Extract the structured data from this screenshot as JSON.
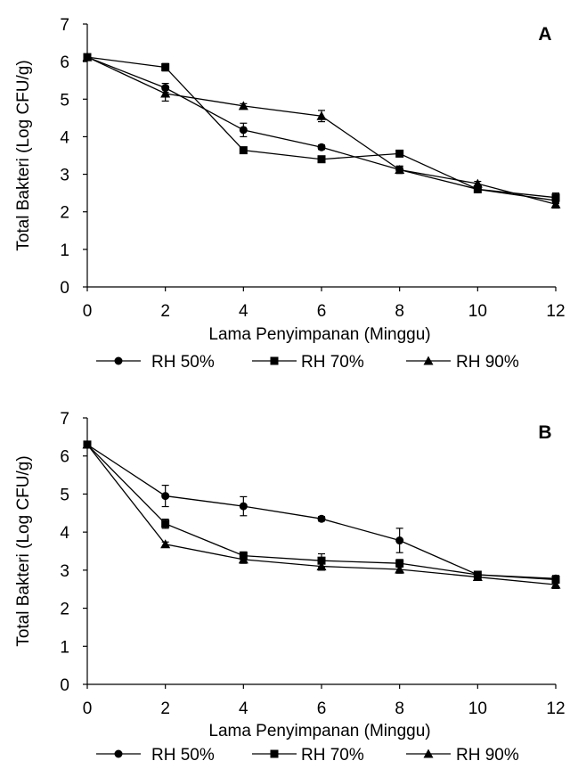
{
  "chart_data": [
    {
      "type": "line",
      "panel_label": "A",
      "xlabel": "Lama Penyimpanan (Minggu)",
      "ylabel": "Total Bakteri  (Log CFU/g)",
      "xlim": [
        0,
        12
      ],
      "ylim": [
        0,
        7
      ],
      "x_ticks": [
        "0",
        "2",
        "4",
        "6",
        "8",
        "10",
        "12"
      ],
      "y_ticks": [
        "0",
        "1",
        "2",
        "3",
        "4",
        "5",
        "6",
        "7"
      ],
      "grid": false,
      "legend_position": "bottom",
      "x": [
        0,
        2,
        4,
        6,
        8,
        10,
        12
      ],
      "series": [
        {
          "name": "RH 50%",
          "marker": "circle",
          "values": [
            6.12,
            5.3,
            4.18,
            3.72,
            3.12,
            2.6,
            2.3
          ],
          "errors": [
            0.05,
            0.12,
            0.18,
            0.06,
            0.1,
            0.06,
            0.08
          ]
        },
        {
          "name": "RH 70%",
          "marker": "square",
          "values": [
            6.12,
            5.85,
            3.64,
            3.4,
            3.55,
            2.6,
            2.38
          ],
          "errors": [
            0.05,
            0.1,
            0.06,
            0.08,
            0.06,
            0.06,
            0.12
          ]
        },
        {
          "name": "RH 90%",
          "marker": "triangle",
          "values": [
            6.12,
            5.15,
            4.82,
            4.55,
            3.12,
            2.75,
            2.2
          ],
          "errors": [
            0.05,
            0.2,
            0.06,
            0.15,
            0.08,
            0.06,
            0.1
          ]
        }
      ]
    },
    {
      "type": "line",
      "panel_label": "B",
      "xlabel": "Lama Penyimpanan (Minggu)",
      "ylabel": "Total Bakteri (Log CFU/g)",
      "xlim": [
        0,
        12
      ],
      "ylim": [
        0,
        7
      ],
      "x_ticks": [
        "0",
        "2",
        "4",
        "6",
        "8",
        "10",
        "12"
      ],
      "y_ticks": [
        "0",
        "1",
        "2",
        "3",
        "4",
        "5",
        "6",
        "7"
      ],
      "grid": false,
      "legend_position": "bottom",
      "x": [
        0,
        2,
        4,
        6,
        8,
        10,
        12
      ],
      "series": [
        {
          "name": "RH 50%",
          "marker": "circle",
          "values": [
            6.3,
            4.95,
            4.68,
            4.35,
            3.78,
            2.88,
            2.78
          ],
          "errors": [
            0.05,
            0.28,
            0.25,
            0.06,
            0.32,
            0.08,
            0.08
          ]
        },
        {
          "name": "RH 70%",
          "marker": "square",
          "values": [
            6.3,
            4.22,
            3.38,
            3.25,
            3.18,
            2.88,
            2.75
          ],
          "errors": [
            0.05,
            0.12,
            0.1,
            0.18,
            0.1,
            0.06,
            0.08
          ]
        },
        {
          "name": "RH 90%",
          "marker": "triangle",
          "values": [
            6.3,
            3.68,
            3.28,
            3.1,
            3.02,
            2.82,
            2.62
          ],
          "errors": [
            0.05,
            0.06,
            0.1,
            0.1,
            0.1,
            0.08,
            0.1
          ]
        }
      ]
    }
  ]
}
